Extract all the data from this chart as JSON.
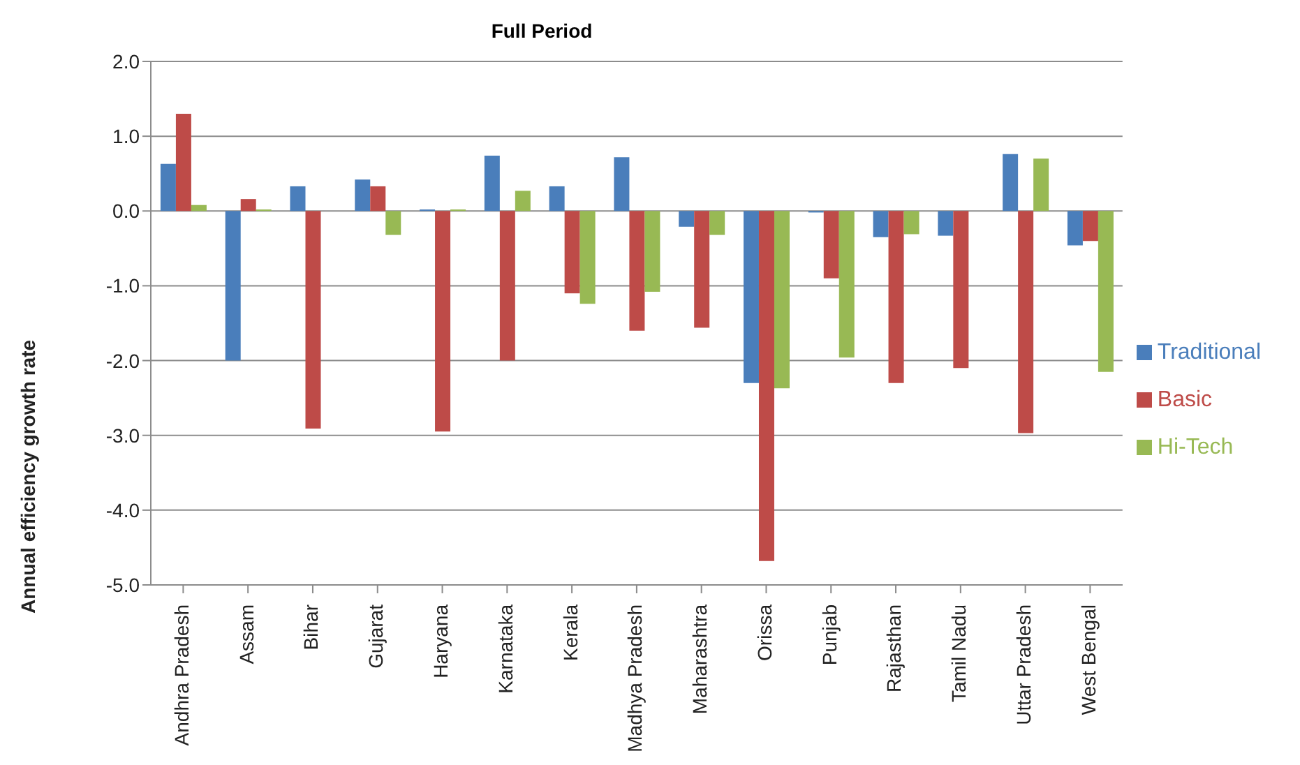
{
  "chart_data": {
    "type": "bar",
    "title": "Full Period",
    "ylabel": "Annual efficiency growth rate",
    "categories": [
      "Andhra Pradesh",
      "Assam",
      "Bihar",
      "Gujarat",
      "Haryana",
      "Karnataka",
      "Kerala",
      "Madhya Pradesh",
      "Maharashtra",
      "Orissa",
      "Punjab",
      "Rajasthan",
      "Tamil Nadu",
      "Uttar Pradesh",
      "West Bengal"
    ],
    "series": [
      {
        "name": "Traditional",
        "color": "#4a7ebb",
        "values": [
          0.63,
          -2.0,
          0.33,
          0.42,
          0.02,
          0.74,
          0.33,
          0.72,
          -0.21,
          -2.3,
          -0.02,
          -0.35,
          -0.33,
          0.76,
          -0.46
        ]
      },
      {
        "name": "Basic",
        "color": "#be4b48",
        "values": [
          1.3,
          0.16,
          -2.91,
          0.33,
          -2.95,
          -2.0,
          -1.1,
          -1.6,
          -1.56,
          -4.68,
          -0.9,
          -2.3,
          -2.1,
          -2.97,
          -0.4
        ]
      },
      {
        "name": "Hi-Tech",
        "color": "#98b954",
        "values": [
          0.08,
          0.02,
          0,
          -0.32,
          0.02,
          0.27,
          -1.24,
          -1.08,
          -0.32,
          -2.37,
          -1.96,
          -0.31,
          0,
          0.7,
          -2.15
        ]
      }
    ],
    "ylim": [
      -5,
      2
    ],
    "yticks": [
      {
        "value": -5,
        "label": "-5.0"
      },
      {
        "value": -4,
        "label": "-4.0"
      },
      {
        "value": -3,
        "label": "-3.0"
      },
      {
        "value": -2,
        "label": "-2.0"
      },
      {
        "value": -1,
        "label": "-1.0"
      },
      {
        "value": 0,
        "label": "0.0"
      },
      {
        "value": 1,
        "label": "1.0"
      },
      {
        "value": 2,
        "label": "2.0"
      }
    ],
    "grid": "y",
    "legend": "right"
  }
}
